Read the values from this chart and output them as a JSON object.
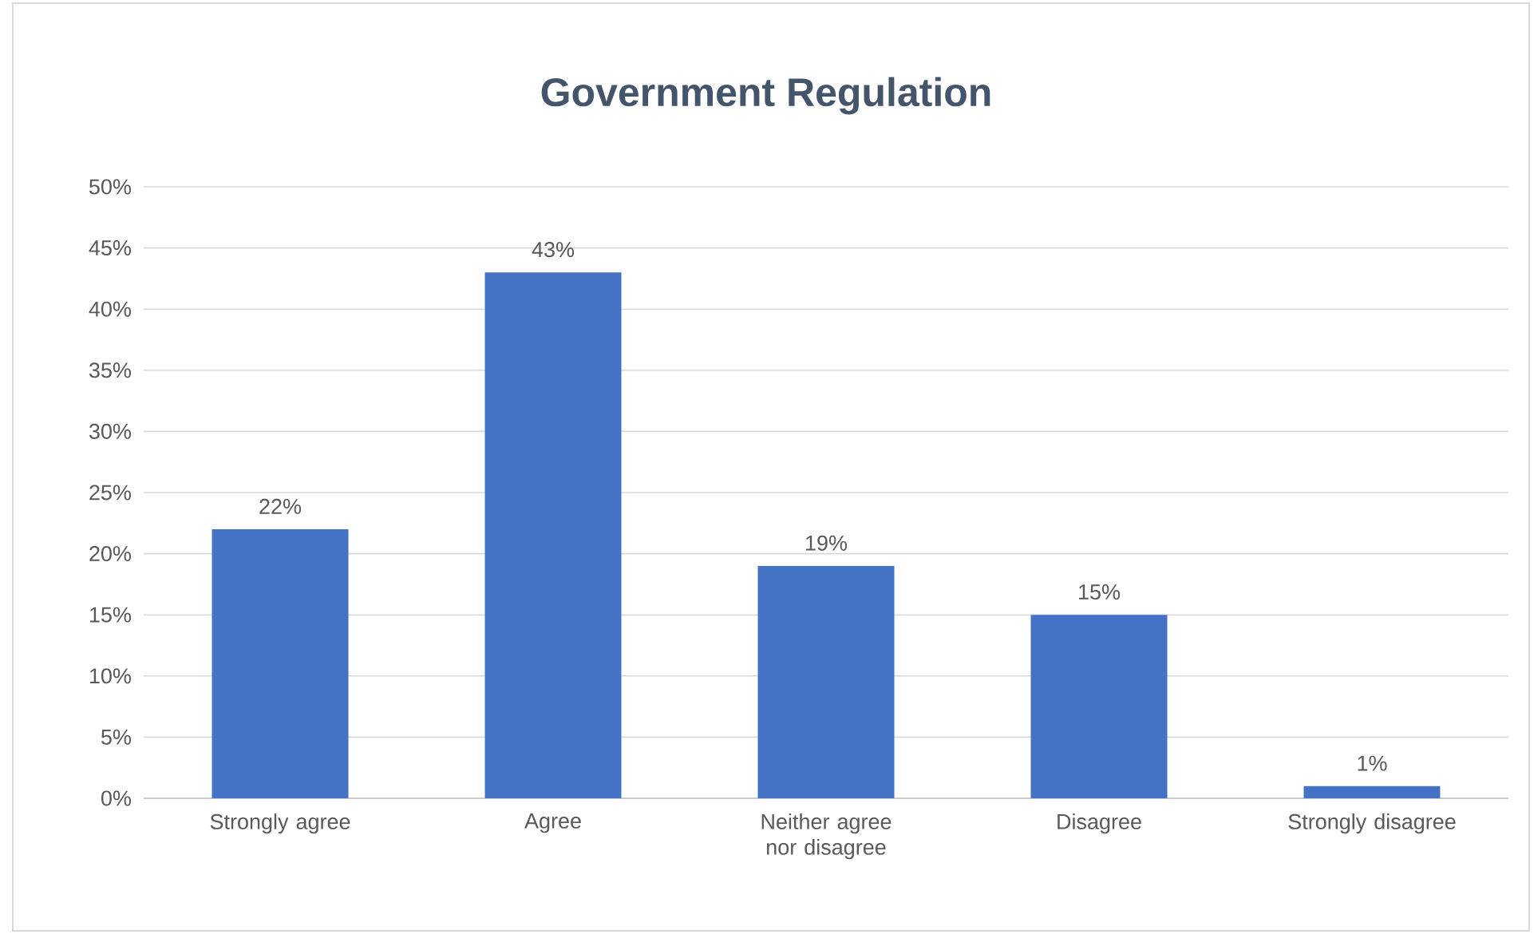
{
  "chart_data": {
    "type": "bar",
    "title": "Government Regulation",
    "categories": [
      "Strongly agree",
      "Agree",
      "Neither agree nor disagree",
      "Disagree",
      "Strongly disagree"
    ],
    "values": [
      22,
      43,
      19,
      15,
      1
    ],
    "value_labels": [
      "22%",
      "43%",
      "19%",
      "15%",
      "1%"
    ],
    "color": "#4472c4",
    "ylim": [
      0,
      50
    ],
    "yticks": [
      {
        "value": 0,
        "label": "0%"
      },
      {
        "value": 5,
        "label": "5%"
      },
      {
        "value": 10,
        "label": "10%"
      },
      {
        "value": 15,
        "label": "15%"
      },
      {
        "value": 20,
        "label": "20%"
      },
      {
        "value": 25,
        "label": "25%"
      },
      {
        "value": 30,
        "label": "30%"
      },
      {
        "value": 35,
        "label": "35%"
      },
      {
        "value": 40,
        "label": "40%"
      },
      {
        "value": 45,
        "label": "45%"
      },
      {
        "value": 50,
        "label": "50%"
      }
    ],
    "grid": "y"
  }
}
